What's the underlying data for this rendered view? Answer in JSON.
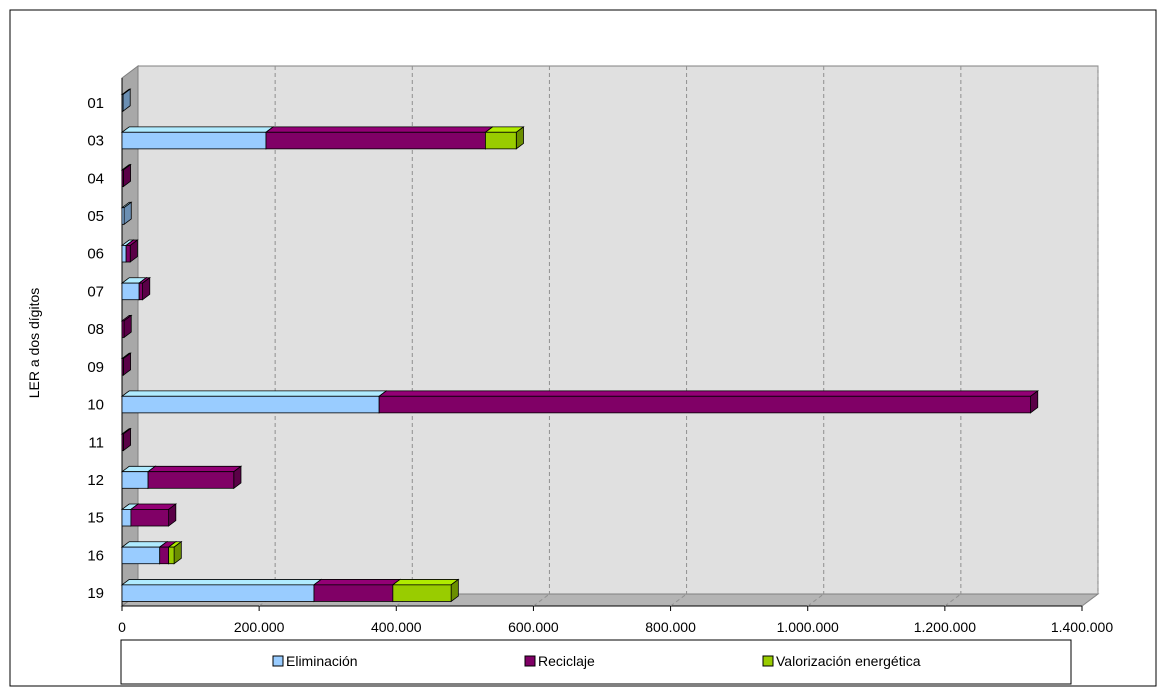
{
  "chart_data": {
    "type": "bar",
    "orientation": "horizontal",
    "stacked": true,
    "style": "3d",
    "ylabel": "LER a dos dígitos",
    "xlabel": "",
    "title": "",
    "categories": [
      "01",
      "03",
      "04",
      "05",
      "06",
      "07",
      "08",
      "09",
      "10",
      "11",
      "12",
      "15",
      "16",
      "19"
    ],
    "series": [
      {
        "name": "Eliminación",
        "color": "#99ccff",
        "values": [
          1000,
          210000,
          0,
          3000,
          6000,
          25000,
          0,
          0,
          375000,
          0,
          38000,
          13000,
          55000,
          280000
        ]
      },
      {
        "name": "Reciclaje",
        "color": "#800066",
        "values": [
          0,
          320000,
          2000,
          0,
          6000,
          5000,
          3000,
          2000,
          950000,
          2000,
          125000,
          55000,
          13000,
          115000
        ]
      },
      {
        "name": "Valorización energética",
        "color": "#99cc00",
        "values": [
          0,
          45000,
          0,
          0,
          0,
          0,
          0,
          0,
          0,
          0,
          0,
          0,
          8000,
          85000
        ]
      }
    ],
    "xlim": [
      0,
      1400000
    ],
    "ticks": [
      "0",
      "200.000",
      "400.000",
      "600.000",
      "800.000",
      "1.000.000",
      "1.200.000",
      "1.400.000"
    ],
    "tick_values": [
      0,
      200000,
      400000,
      600000,
      800000,
      1000000,
      1200000,
      1400000
    ],
    "grid": true,
    "legend_position": "bottom"
  }
}
